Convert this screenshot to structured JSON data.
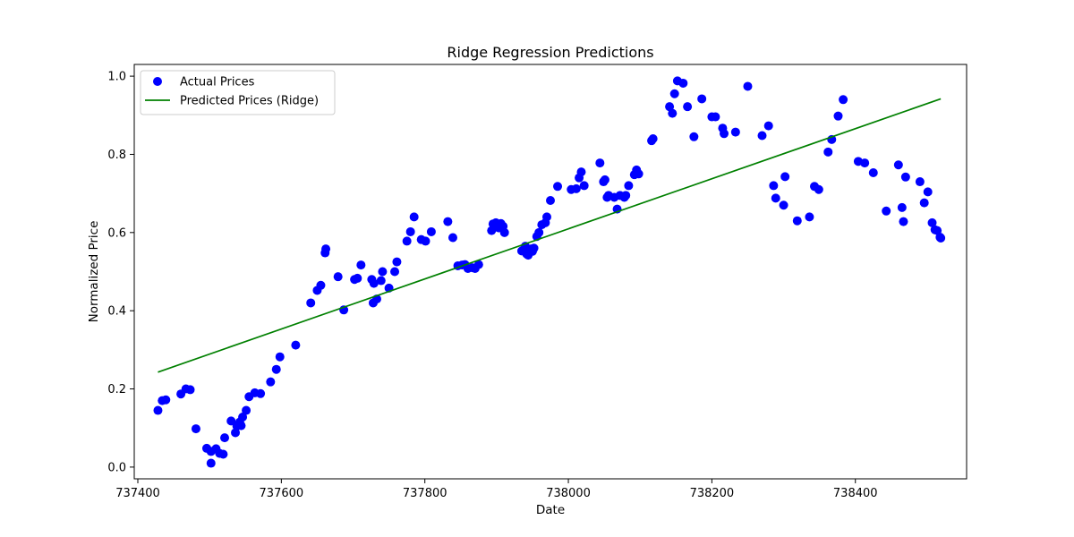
{
  "chart_data": {
    "type": "scatter",
    "title": "Ridge Regression Predictions",
    "xlabel": "Date",
    "ylabel": "Normalized Price",
    "xlim": [
      737395,
      738555
    ],
    "ylim": [
      -0.03,
      1.03
    ],
    "xticks": [
      737400,
      737600,
      737800,
      738000,
      738200,
      738400
    ],
    "yticks": [
      0.0,
      0.2,
      0.4,
      0.6,
      0.8,
      1.0
    ],
    "ytick_labels": [
      "0.0",
      "0.2",
      "0.4",
      "0.6",
      "0.8",
      "1.0"
    ],
    "grid": false,
    "legend_position": "top-left",
    "series": [
      {
        "name": "Actual Prices",
        "kind": "scatter",
        "color": "#0000ff",
        "points": [
          [
            737428,
            0.145
          ],
          [
            737434,
            0.17
          ],
          [
            737439,
            0.172
          ],
          [
            737460,
            0.187
          ],
          [
            737467,
            0.2
          ],
          [
            737473,
            0.198
          ],
          [
            737481,
            0.098
          ],
          [
            737496,
            0.048
          ],
          [
            737502,
            0.04
          ],
          [
            737502,
            0.01
          ],
          [
            737509,
            0.047
          ],
          [
            737514,
            0.035
          ],
          [
            737519,
            0.033
          ],
          [
            737521,
            0.075
          ],
          [
            737530,
            0.118
          ],
          [
            737536,
            0.088
          ],
          [
            737538,
            0.105
          ],
          [
            737542,
            0.115
          ],
          [
            737544,
            0.106
          ],
          [
            737546,
            0.128
          ],
          [
            737551,
            0.145
          ],
          [
            737555,
            0.18
          ],
          [
            737563,
            0.19
          ],
          [
            737571,
            0.188
          ],
          [
            737585,
            0.218
          ],
          [
            737593,
            0.25
          ],
          [
            737598,
            0.282
          ],
          [
            737620,
            0.312
          ],
          [
            737641,
            0.42
          ],
          [
            737650,
            0.452
          ],
          [
            737655,
            0.465
          ],
          [
            737661,
            0.548
          ],
          [
            737662,
            0.558
          ],
          [
            737679,
            0.487
          ],
          [
            737687,
            0.402
          ],
          [
            737702,
            0.48
          ],
          [
            737706,
            0.483
          ],
          [
            737711,
            0.517
          ],
          [
            737726,
            0.48
          ],
          [
            737728,
            0.42
          ],
          [
            737729,
            0.47
          ],
          [
            737733,
            0.43
          ],
          [
            737739,
            0.477
          ],
          [
            737741,
            0.5
          ],
          [
            737750,
            0.458
          ],
          [
            737758,
            0.5
          ],
          [
            737761,
            0.525
          ],
          [
            737775,
            0.578
          ],
          [
            737780,
            0.602
          ],
          [
            737785,
            0.64
          ],
          [
            737795,
            0.582
          ],
          [
            737801,
            0.578
          ],
          [
            737809,
            0.602
          ],
          [
            737832,
            0.628
          ],
          [
            737839,
            0.587
          ],
          [
            737846,
            0.515
          ],
          [
            737852,
            0.517
          ],
          [
            737856,
            0.518
          ],
          [
            737860,
            0.508
          ],
          [
            737866,
            0.51
          ],
          [
            737870,
            0.508
          ],
          [
            737875,
            0.518
          ],
          [
            737893,
            0.605
          ],
          [
            737895,
            0.622
          ],
          [
            737899,
            0.625
          ],
          [
            737903,
            0.612
          ],
          [
            737906,
            0.623
          ],
          [
            737909,
            0.616
          ],
          [
            737911,
            0.6
          ],
          [
            737935,
            0.553
          ],
          [
            737937,
            0.555
          ],
          [
            737940,
            0.565
          ],
          [
            737942,
            0.545
          ],
          [
            737944,
            0.542
          ],
          [
            737948,
            0.558
          ],
          [
            737950,
            0.552
          ],
          [
            737952,
            0.56
          ],
          [
            737956,
            0.59
          ],
          [
            737959,
            0.6
          ],
          [
            737963,
            0.62
          ],
          [
            737968,
            0.625
          ],
          [
            737970,
            0.64
          ],
          [
            737975,
            0.682
          ],
          [
            737985,
            0.718
          ],
          [
            738004,
            0.71
          ],
          [
            738011,
            0.712
          ],
          [
            738015,
            0.74
          ],
          [
            738018,
            0.755
          ],
          [
            738022,
            0.72
          ],
          [
            738044,
            0.778
          ],
          [
            738049,
            0.73
          ],
          [
            738051,
            0.735
          ],
          [
            738054,
            0.69
          ],
          [
            738056,
            0.695
          ],
          [
            738064,
            0.69
          ],
          [
            738068,
            0.66
          ],
          [
            738072,
            0.695
          ],
          [
            738078,
            0.69
          ],
          [
            738080,
            0.695
          ],
          [
            738084,
            0.72
          ],
          [
            738092,
            0.748
          ],
          [
            738095,
            0.76
          ],
          [
            738098,
            0.75
          ],
          [
            738116,
            0.835
          ],
          [
            738118,
            0.84
          ],
          [
            738141,
            0.922
          ],
          [
            738145,
            0.905
          ],
          [
            738148,
            0.955
          ],
          [
            738152,
            0.988
          ],
          [
            738160,
            0.982
          ],
          [
            738166,
            0.922
          ],
          [
            738175,
            0.845
          ],
          [
            738186,
            0.942
          ],
          [
            738200,
            0.896
          ],
          [
            738205,
            0.896
          ],
          [
            738215,
            0.867
          ],
          [
            738217,
            0.853
          ],
          [
            738233,
            0.857
          ],
          [
            738250,
            0.974
          ],
          [
            738270,
            0.848
          ],
          [
            738279,
            0.873
          ],
          [
            738286,
            0.72
          ],
          [
            738289,
            0.688
          ],
          [
            738300,
            0.67
          ],
          [
            738302,
            0.743
          ],
          [
            738319,
            0.63
          ],
          [
            738336,
            0.64
          ],
          [
            738343,
            0.718
          ],
          [
            738349,
            0.71
          ],
          [
            738362,
            0.806
          ],
          [
            738367,
            0.838
          ],
          [
            738376,
            0.898
          ],
          [
            738383,
            0.94
          ],
          [
            738404,
            0.782
          ],
          [
            738413,
            0.778
          ],
          [
            738425,
            0.753
          ],
          [
            738443,
            0.655
          ],
          [
            738460,
            0.773
          ],
          [
            738465,
            0.664
          ],
          [
            738467,
            0.628
          ],
          [
            738470,
            0.742
          ],
          [
            738490,
            0.73
          ],
          [
            738496,
            0.676
          ],
          [
            738501,
            0.704
          ],
          [
            738507,
            0.625
          ],
          [
            738511,
            0.607
          ],
          [
            738514,
            0.605
          ],
          [
            738518,
            0.588
          ],
          [
            738519,
            0.586
          ]
        ]
      },
      {
        "name": "Predicted Prices (Ridge)",
        "kind": "line",
        "color": "#008000",
        "points": [
          [
            737428,
            0.243
          ],
          [
            738519,
            0.942
          ]
        ]
      }
    ]
  }
}
